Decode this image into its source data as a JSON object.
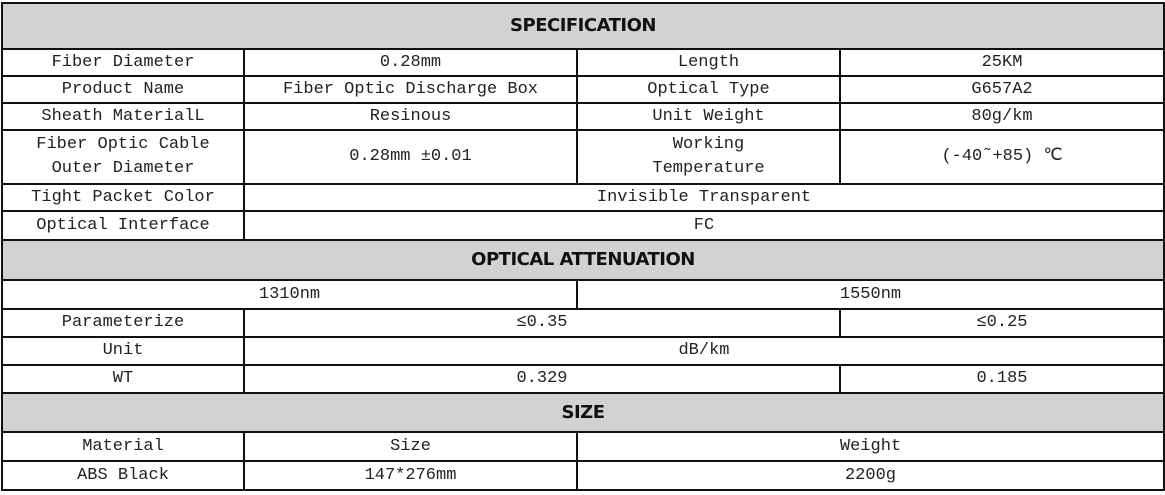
{
  "specification": {
    "title": "SPECIFICATION",
    "rows": [
      {
        "label": "Fiber Diameter",
        "value": "0.28mm",
        "label2": "Length",
        "value2": "25KM"
      },
      {
        "label": "Product Name",
        "value": "Fiber Optic Discharge Box",
        "label2": "Optical Type",
        "value2": "G657A2"
      },
      {
        "label": "Sheath MaterialL",
        "value": "Resinous",
        "label2": "Unit Weight",
        "value2": "80g/km"
      },
      {
        "label_line1": "Fiber Optic Cable",
        "label_line2": "Outer Diameter",
        "value": "0.28mm ±0.01",
        "label2_line1": "Working",
        "label2_line2": "Temperature",
        "value2": "(-40˜+85) ℃"
      }
    ],
    "tight_packet_color": {
      "label": "Tight Packet Color",
      "value": "Invisible Transparent"
    },
    "optical_interface": {
      "label": "Optical Interface",
      "value": "FC"
    }
  },
  "optical_attenuation": {
    "title": "OPTICAL ATTENUATION",
    "wavelengths": [
      "1310nm",
      "1550nm"
    ],
    "rows": [
      {
        "label": "Parameterize",
        "v1310": "≤0.35",
        "v1550": "≤0.25"
      },
      {
        "label": "Unit",
        "value": "dB/km"
      },
      {
        "label": "WT",
        "v1310": "0.329",
        "v1550": "0.185"
      }
    ]
  },
  "size": {
    "title": "SIZE",
    "headers": [
      "Material",
      "Size",
      "Weight"
    ],
    "row": [
      "ABS Black",
      "147*276mm",
      "2200g"
    ]
  }
}
